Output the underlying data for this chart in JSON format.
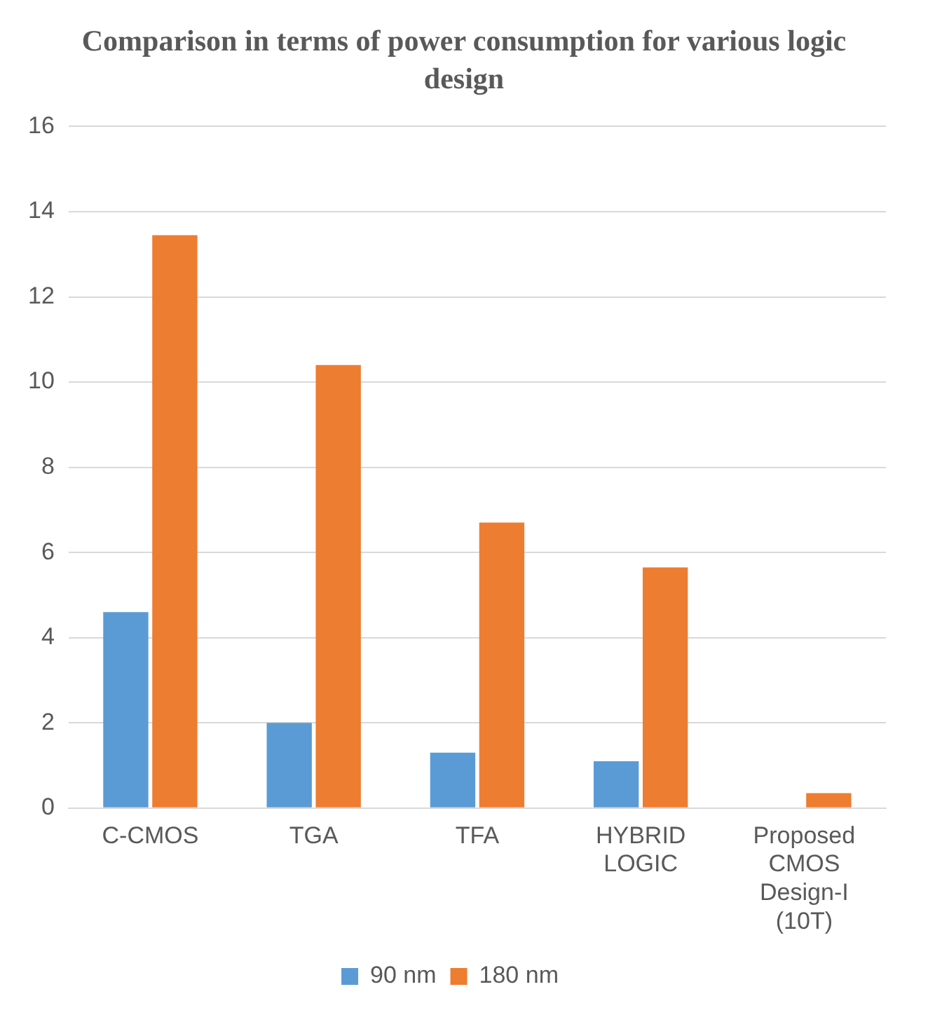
{
  "chart_data": {
    "type": "bar",
    "title": "Comparison in terms of power consumption for various logic design",
    "categories": [
      "C-CMOS",
      "TGA",
      "TFA",
      "HYBRID LOGIC",
      "Proposed CMOS Design-I (10T)"
    ],
    "series": [
      {
        "name": "90 nm",
        "color": "#5b9bd5",
        "values": [
          4.6,
          2.0,
          1.3,
          1.1,
          null
        ]
      },
      {
        "name": "180 nm",
        "color": "#ed7d31",
        "values": [
          13.45,
          10.4,
          6.7,
          5.65,
          0.35
        ]
      }
    ],
    "ylim": [
      0,
      16
    ],
    "yticks": [
      0,
      2,
      4,
      6,
      8,
      10,
      12,
      14,
      16
    ],
    "grid": "y",
    "legend": "bottom"
  }
}
